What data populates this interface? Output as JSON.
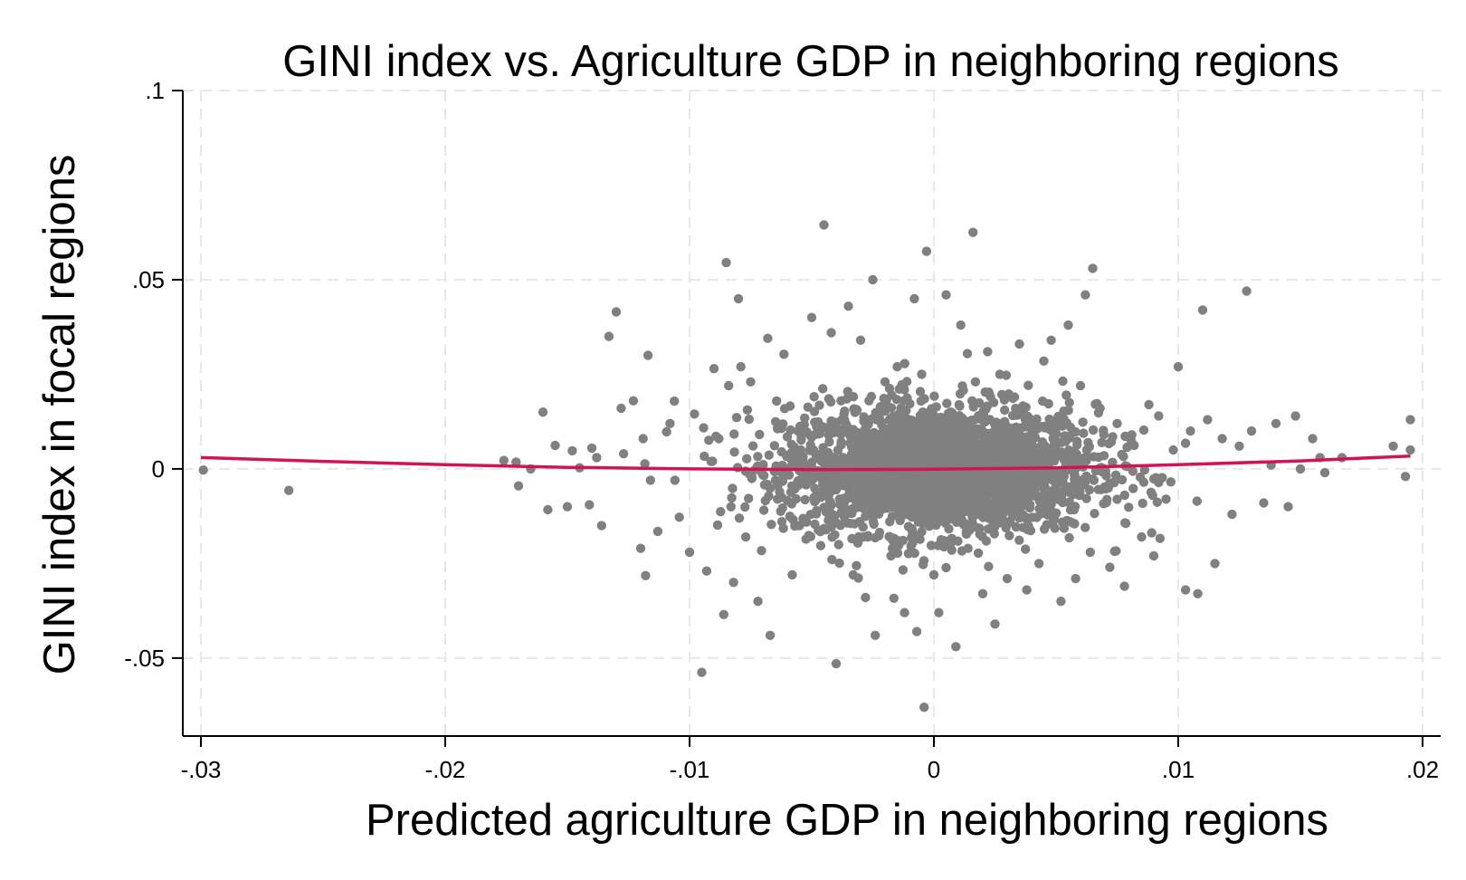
{
  "chart_data": {
    "type": "scatter",
    "title": "GINI index vs. Agriculture GDP in neighboring regions",
    "xlabel": "Predicted agriculture GDP in neighboring regions",
    "ylabel": "GINI index in focal regions",
    "xlim": [
      -0.03,
      0.02
    ],
    "ylim": [
      -0.0675,
      0.1
    ],
    "x_ticks": [
      {
        "value": -0.03,
        "label": "-.03"
      },
      {
        "value": -0.02,
        "label": "-.02"
      },
      {
        "value": -0.01,
        "label": "-.01"
      },
      {
        "value": 0,
        "label": "0"
      },
      {
        "value": 0.01,
        "label": ".01"
      },
      {
        "value": 0.02,
        "label": ".02"
      }
    ],
    "y_ticks": [
      {
        "value": -0.05,
        "label": "-.05"
      },
      {
        "value": 0,
        "label": "0"
      },
      {
        "value": 0.05,
        "label": ".05"
      },
      {
        "value": 0.1,
        "label": ".1"
      }
    ],
    "grid": true,
    "point_color": "#808080",
    "fit_color": "#d0145a",
    "series": [
      {
        "kind": "scatter",
        "x": [
          -0.0299,
          -0.0264,
          -0.0176,
          -0.0171,
          -0.017,
          -0.0165,
          -0.016,
          -0.0158,
          -0.0155,
          -0.015,
          -0.0148,
          -0.0145,
          -0.0141,
          -0.014,
          -0.0138,
          -0.0136,
          -0.0133,
          -0.013,
          -0.0128,
          -0.0127,
          -0.0123,
          -0.012,
          -0.0119,
          -0.0118,
          -0.0117,
          -0.0116,
          -0.0113,
          -0.0108,
          -0.0106,
          -0.01,
          -0.0098,
          -0.0095,
          -0.0093,
          -0.009,
          -0.0088,
          -0.0086,
          -0.0085,
          -0.0084,
          -0.0082,
          -0.008,
          -0.0079,
          -0.0077,
          -0.0075,
          -0.0072,
          -0.0068,
          -0.0067,
          -0.0064,
          -0.006,
          -0.0058,
          -0.0057,
          -0.0055,
          -0.005,
          -0.0048,
          -0.0045,
          -0.0042,
          -0.004,
          -0.0039,
          -0.0038,
          -0.0035,
          -0.0033,
          -0.003,
          -0.0028,
          -0.0025,
          -0.0024,
          -0.0022,
          -0.002,
          -0.0017,
          -0.0015,
          -0.0012,
          -0.001,
          -0.0008,
          -0.0007,
          -0.0005,
          -0.0004,
          -0.0003,
          -0.0002,
          0.0,
          0.0002,
          0.0005,
          0.0007,
          0.0009,
          0.0011,
          0.0014,
          0.0016,
          0.0017,
          0.002,
          0.0022,
          0.0025,
          0.0027,
          0.003,
          0.0033,
          0.0035,
          0.0038,
          0.004,
          0.0043,
          0.0045,
          0.0048,
          0.0052,
          0.0055,
          0.0058,
          0.006,
          0.0062,
          0.0064,
          0.0065,
          0.0068,
          0.0072,
          0.0075,
          0.0078,
          0.0081,
          0.0085,
          0.0088,
          0.009,
          0.0092,
          0.0095,
          0.0098,
          0.01,
          0.0103,
          0.0105,
          0.0108,
          0.011,
          0.0112,
          0.0115,
          0.0118,
          0.0122,
          0.0125,
          0.0128,
          0.013,
          0.0135,
          0.0138,
          0.014,
          0.0145,
          0.0148,
          0.015,
          0.0155,
          0.0158,
          0.016,
          0.0167,
          0.0188,
          0.0193,
          0.0195,
          0.0195
        ],
        "y": [
          -0.0003,
          -0.0057,
          0.0022,
          0.0018,
          -0.0045,
          0.0,
          0.015,
          -0.0108,
          0.0062,
          -0.01,
          0.0048,
          0.0003,
          -0.0095,
          0.0055,
          0.003,
          -0.015,
          0.035,
          0.0415,
          0.016,
          0.004,
          0.018,
          -0.021,
          0.008,
          -0.0282,
          0.03,
          -0.003,
          -0.0165,
          0.012,
          -0.003,
          -0.022,
          0.0145,
          -0.0538,
          -0.027,
          0.0265,
          0.008,
          -0.0385,
          0.0545,
          0.022,
          -0.03,
          0.045,
          0.027,
          -0.018,
          0.023,
          -0.035,
          0.0345,
          -0.044,
          -0.008,
          0.0085,
          -0.028,
          0.005,
          -0.015,
          0.04,
          -0.011,
          0.0645,
          0.036,
          -0.0515,
          -0.02,
          0.018,
          0.043,
          -0.028,
          0.034,
          -0.034,
          0.05,
          -0.044,
          0.009,
          0.023,
          -0.021,
          0.027,
          -0.038,
          -0.012,
          0.045,
          -0.043,
          0.025,
          -0.063,
          0.0575,
          0.005,
          -0.028,
          -0.038,
          0.046,
          0.015,
          -0.047,
          0.038,
          -0.002,
          0.0625,
          0.023,
          -0.033,
          0.031,
          -0.041,
          0.025,
          -0.029,
          0.019,
          0.033,
          -0.032,
          0.009,
          -0.025,
          0.0285,
          0.034,
          -0.035,
          0.038,
          -0.029,
          0.022,
          0.046,
          -0.022,
          0.053,
          0.016,
          -0.026,
          0.012,
          -0.031,
          0.009,
          -0.018,
          0.017,
          -0.023,
          0.014,
          -0.008,
          0.005,
          0.027,
          -0.032,
          0.01,
          -0.033,
          0.042,
          0.013,
          -0.025,
          0.008,
          -0.012,
          0.006,
          0.047,
          0.01,
          -0.009,
          0.001,
          0.012,
          -0.01,
          0.014,
          0.0,
          0.008,
          0.003,
          -0.001,
          0.003,
          0.006,
          -0.002,
          0.005,
          0.013
        ]
      },
      {
        "kind": "fit-line",
        "x": [
          -0.03,
          -0.025,
          -0.02,
          -0.015,
          -0.01,
          -0.005,
          0,
          0.005,
          0.01,
          0.015,
          0.0195
        ],
        "y": [
          0.003,
          0.002,
          0.0011,
          0.0004,
          0.0,
          -0.0002,
          -0.0001,
          0.0003,
          0.0011,
          0.0021,
          0.0034
        ]
      }
    ]
  }
}
